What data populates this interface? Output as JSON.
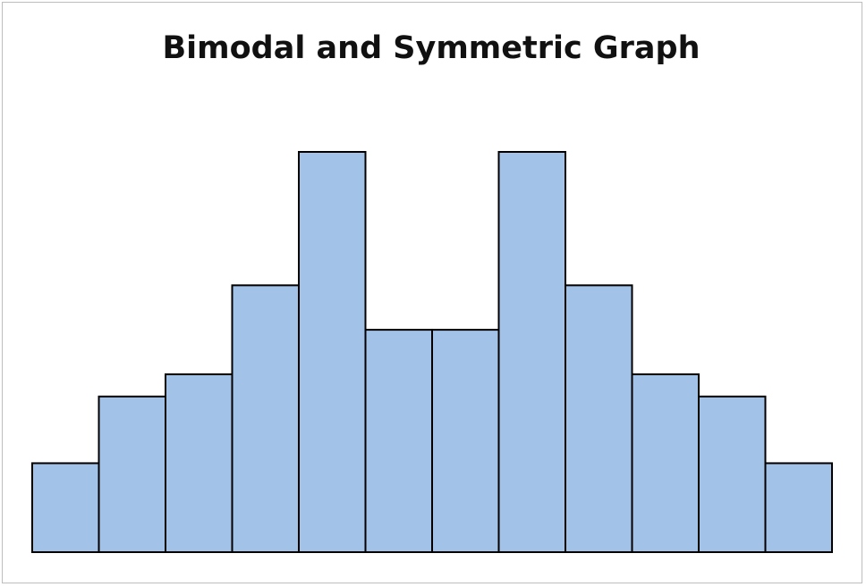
{
  "chart_data": {
    "type": "bar",
    "title": "Bimodal and Symmetric Graph",
    "xlabel": "",
    "ylabel": "",
    "categories": [
      "",
      "",
      "",
      "",
      "",
      "",
      "",
      "",
      "",
      "",
      "",
      ""
    ],
    "values": [
      2,
      3.5,
      4,
      6,
      9,
      5,
      5,
      9,
      6,
      4,
      3.5,
      2
    ],
    "ylim": [
      0,
      9.5
    ],
    "grid": false,
    "legend": "none",
    "colors": {
      "bar_fill": "#a2c2e8",
      "bar_stroke": "#000000"
    }
  }
}
